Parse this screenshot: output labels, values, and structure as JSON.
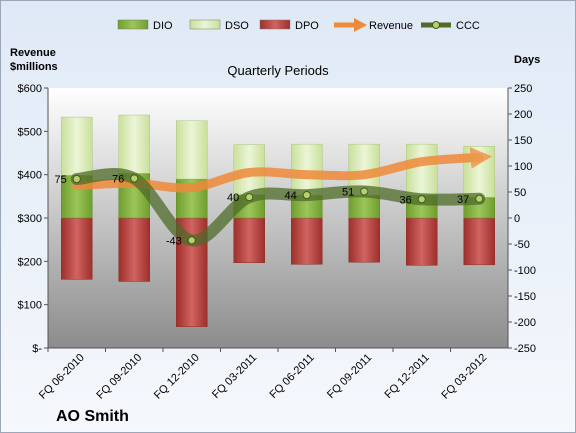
{
  "chart_data": {
    "type": "bar",
    "company": "AO Smith",
    "title": "Quarterly Periods",
    "y_left_label_line1": "Revenue",
    "y_left_label_line2": "$millions",
    "y_right_label": "Days",
    "left_axis": {
      "min": 0,
      "max": 600,
      "ticks": [
        0,
        100,
        200,
        300,
        400,
        500,
        600
      ],
      "tick_labels": [
        "$-",
        "$100",
        "$200",
        "$300",
        "$400",
        "$500",
        "$600"
      ]
    },
    "right_axis": {
      "min": -250,
      "max": 250,
      "ticks": [
        -250,
        -200,
        -150,
        -100,
        -50,
        0,
        50,
        100,
        150,
        200,
        250
      ]
    },
    "categories": [
      "FQ 06-2010",
      "FQ 09-2010",
      "FQ 12-2010",
      "FQ 03-2011",
      "FQ 06-2011",
      "FQ 09-2011",
      "FQ 12-2011",
      "FQ 03-2012"
    ],
    "series": [
      {
        "name": "DIO",
        "type": "bar",
        "axis": "right",
        "color": "#7fae3a",
        "values": [
          82,
          86,
          75,
          45,
          44,
          44,
          44,
          40
        ]
      },
      {
        "name": "DSO",
        "type": "bar",
        "axis": "right",
        "color": "#d7eab0",
        "values": [
          112,
          112,
          112,
          96,
          98,
          98,
          98,
          98
        ]
      },
      {
        "name": "DPO",
        "type": "bar",
        "axis": "right",
        "color": "#c0504d",
        "values": [
          -118,
          -122,
          -209,
          -86,
          -89,
          -85,
          -91,
          -90
        ]
      },
      {
        "name": "Revenue",
        "type": "line",
        "axis": "left",
        "color": "#ef8a3a",
        "values": [
          375,
          380,
          370,
          405,
          400,
          400,
          430,
          440
        ]
      },
      {
        "name": "CCC",
        "type": "line",
        "axis": "right",
        "color": "#4f6b2a",
        "values": [
          75,
          76,
          -43,
          40,
          44,
          51,
          36,
          37
        ],
        "data_labels": [
          "75",
          "76",
          "-43",
          "40",
          "44",
          "51",
          "36",
          "37"
        ]
      }
    ],
    "legend_position": "top",
    "grid": false
  }
}
